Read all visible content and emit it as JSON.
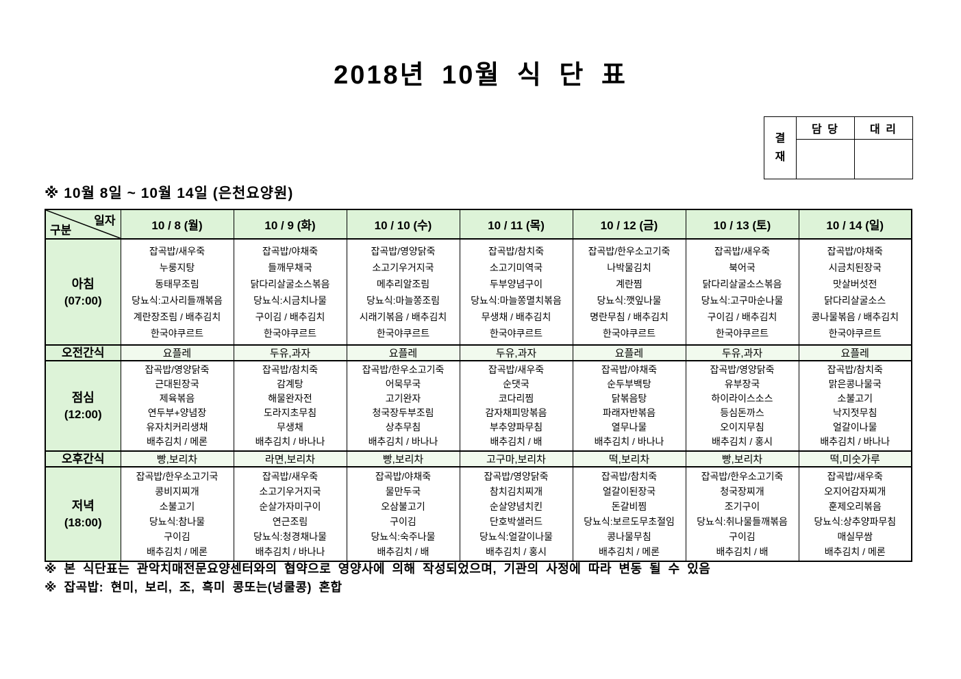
{
  "colors": {
    "header_green": "#ddf3d8",
    "snack_green": "#f1faee",
    "border": "#000000"
  },
  "title": "2018년 10월 식 단 표",
  "approval": {
    "label": "결재",
    "columns": [
      "담 당",
      "대 리"
    ]
  },
  "subtitle": "※ 10월 8일 ~ 10월 14일 (은천요양원)",
  "table": {
    "corner": {
      "top": "일자",
      "bottom": "구분"
    },
    "days": [
      "10 / 8 (월)",
      "10 / 9 (화)",
      "10 / 10 (수)",
      "10 / 11 (목)",
      "10 / 12 (금)",
      "10 / 13 (토)",
      "10 / 14 (일)"
    ],
    "rows": [
      {
        "type": "meal",
        "label": "아침",
        "time": "(07:00)",
        "cells": [
          [
            "잡곡밥/새우죽",
            "누룽지탕",
            "동태무조림",
            "당뇨식:고사리들깨볶음",
            "계란장조림 / 배추김치",
            "한국야쿠르트"
          ],
          [
            "잡곡밥/야채죽",
            "들깨무채국",
            "닭다리살굴소스볶음",
            "당뇨식:시금치나물",
            "구이김 / 배추김치",
            "한국야쿠르트"
          ],
          [
            "잡곡밥/영양닭죽",
            "소고기우거지국",
            "메추리알조림",
            "당뇨식:마늘쫑조림",
            "시래기볶음 / 배추김치",
            "한국야쿠르트"
          ],
          [
            "잡곡밥/참치죽",
            "소고기미역국",
            "두부양념구이",
            "당뇨식:마늘쫑멸치볶음",
            "무생채 / 배추김치",
            "한국야쿠르트"
          ],
          [
            "잡곡밥/한우소고기죽",
            "나박물김치",
            "계란찜",
            "당뇨식:깻잎나물",
            "명란무침 / 배추김치",
            "한국야쿠르트"
          ],
          [
            "잡곡밥/새우죽",
            "북어국",
            "닭다리살굴소스볶음",
            "당뇨식:고구마순나물",
            "구이김 / 배추김치",
            "한국야쿠르트"
          ],
          [
            "잡곡밥/야채죽",
            "시금치된장국",
            "맛살버섯전",
            "닭다리살굴소스",
            "콩나물볶음 / 배추김치",
            "한국야쿠르트"
          ]
        ]
      },
      {
        "type": "snack",
        "label": "오전간식",
        "cells": [
          "요플레",
          "두유,과자",
          "요플레",
          "두유,과자",
          "요플레",
          "두유,과자",
          "요플레"
        ]
      },
      {
        "type": "meal",
        "label": "점심",
        "time": "(12:00)",
        "cells": [
          [
            "잡곡밥/영양닭죽",
            "근대된장국",
            "제육볶음",
            "연두부+양념장",
            "유자치커리생채",
            "배추김치 / 메론"
          ],
          [
            "잡곡밥/참치죽",
            "감계탕",
            "해물완자전",
            "도라지초무침",
            "무생채",
            "배추김치 / 바나나"
          ],
          [
            "잡곡밥/한우소고기죽",
            "어묵무국",
            "고기완자",
            "청국장두부조림",
            "상추무침",
            "배추김치 / 바나나"
          ],
          [
            "잡곡밥/새우죽",
            "순댓국",
            "코다리찜",
            "감자채피망볶음",
            "부추양파무침",
            "배추김치 / 배"
          ],
          [
            "잡곡밥/야채죽",
            "순두부백탕",
            "닭볶음탕",
            "파래자반볶음",
            "열무나물",
            "배추김치 / 바나나"
          ],
          [
            "잡곡밥/영양닭죽",
            "유부장국",
            "하이라이스소스",
            "등심돈까스",
            "오이지무침",
            "배추김치 / 홍시"
          ],
          [
            "잡곡밥/참치죽",
            "맑은콩나물국",
            "소불고기",
            "낙지젓무침",
            "얼갈이나물",
            "배추김치 / 바나나"
          ]
        ]
      },
      {
        "type": "snack",
        "label": "오후간식",
        "cells": [
          "빵,보리차",
          "라면,보리차",
          "빵,보리차",
          "고구마,보리차",
          "떡,보리차",
          "빵,보리차",
          "떡,미숫가루"
        ]
      },
      {
        "type": "meal",
        "label": "저녁",
        "time": "(18:00)",
        "cells": [
          [
            "잡곡밥/한우소고기국",
            "콩비지찌개",
            "소불고기",
            "당뇨식:참나물",
            "구이김",
            "배추김치 / 메론"
          ],
          [
            "잡곡밥/새우죽",
            "소고기우거지국",
            "순살가자미구이",
            "연근조림",
            "당뇨식:청경채나물",
            "배추김치 / 바나나"
          ],
          [
            "잡곡밥/야채죽",
            "물만두국",
            "오삼불고기",
            "구이김",
            "당뇨식:숙주나물",
            "배추김치 / 배"
          ],
          [
            "잡곡밥/영양닭죽",
            "참치김치찌개",
            "순살양념치킨",
            "단호박샐러드",
            "당뇨식:얼갈이나물",
            "배추김치 / 홍시"
          ],
          [
            "잡곡밥/참치죽",
            "얼갈이된장국",
            "돈갈비찜",
            "당뇨식:보르도무초절임",
            "콩나물무침",
            "배추김치 / 메론"
          ],
          [
            "잡곡밥/한우소고기죽",
            "청국장찌개",
            "조기구이",
            "당뇨식:취나물들깨볶음",
            "구이김",
            "배추김치 / 배"
          ],
          [
            "잡곡밥/새우죽",
            "오지어감자찌개",
            "훈제오리볶음",
            "당뇨식:상추양파무침",
            "매실무쌈",
            "배추김치 / 메론"
          ]
        ]
      }
    ]
  },
  "notes": [
    "※ 본 식단표는 관악치매전문요양센터와의 협약으로 영양사에 의해 작성되었으며, 기관의 사정에 따라 변동 될 수 있음",
    "※ 잡곡밥: 현미, 보리, 조, 흑미 콩또는(넝쿨콩) 혼합"
  ]
}
